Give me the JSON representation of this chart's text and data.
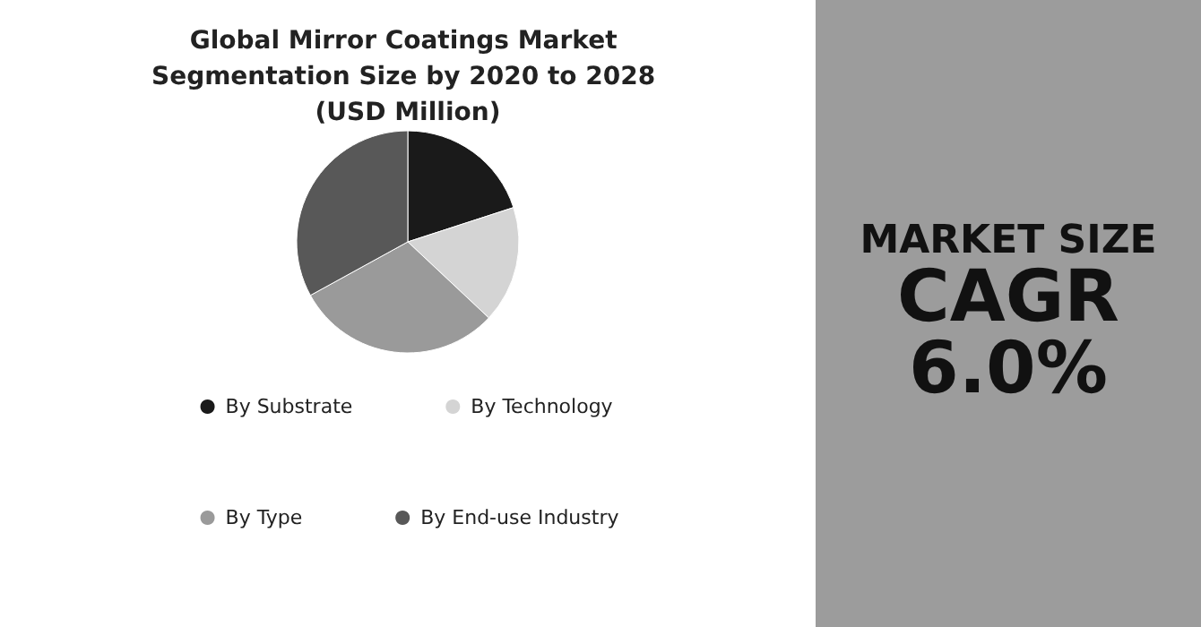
{
  "chart_data": [
    {
      "type": "pie",
      "title": "Global Mirror Coatings Market Segmentation Size by 2020 to 2028 (USD Million)",
      "categories": [
        "By Substrate",
        "By Technology",
        "By Type",
        "By End-use Industry"
      ],
      "values": [
        20,
        17,
        30,
        33
      ],
      "colors": [
        "#1a1a1a",
        "#d4d4d4",
        "#9a9a9a",
        "#585858"
      ],
      "legend": "bottom"
    },
    {
      "type": "other",
      "title": "MARKET SIZE",
      "annotations": [
        "CAGR",
        "6.0%"
      ]
    }
  ]
}
